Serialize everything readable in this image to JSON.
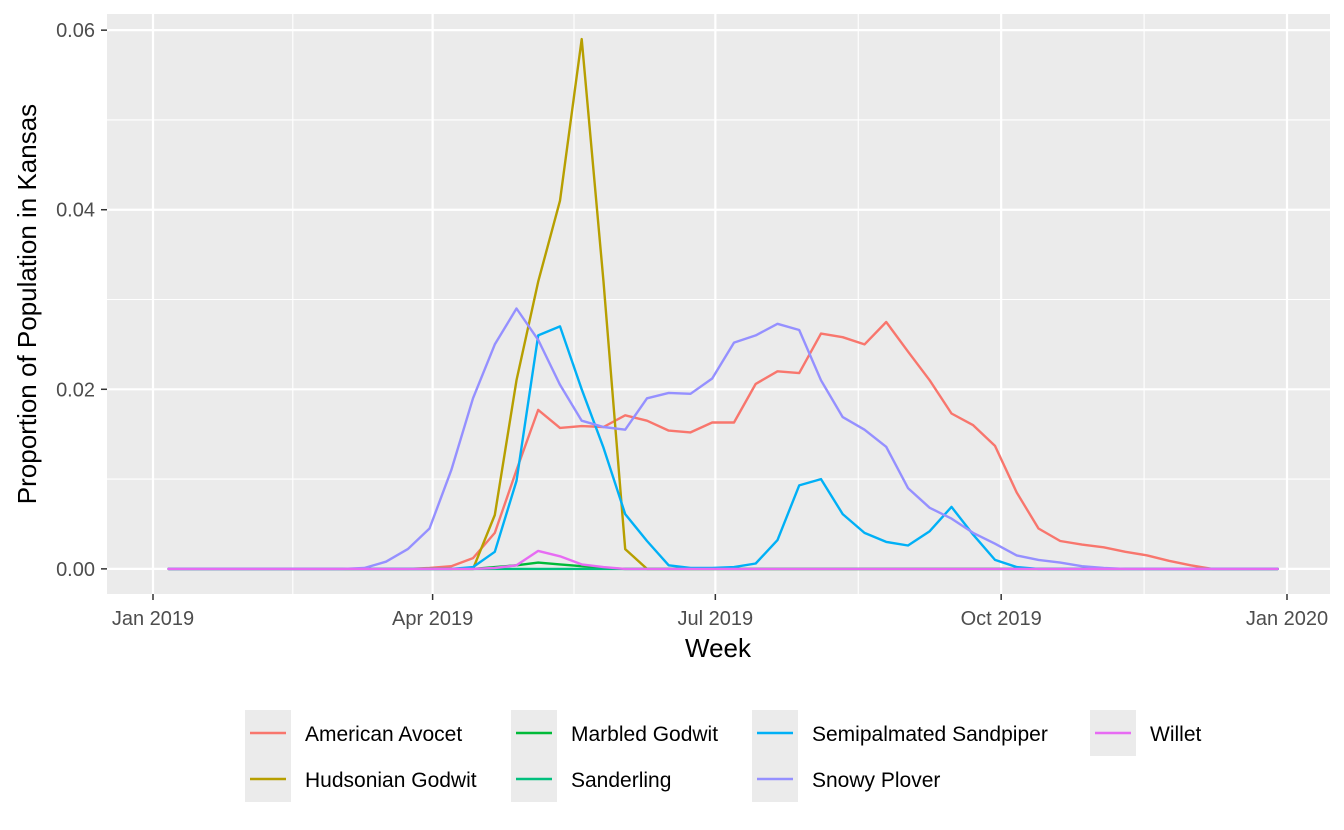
{
  "chart_data": {
    "type": "line",
    "title": "",
    "xlabel": "Week",
    "ylabel": "Proportion of Population in Kansas",
    "x_ticks": [
      {
        "label": "Jan 2019",
        "day": 0
      },
      {
        "label": "Apr 2019",
        "day": 90
      },
      {
        "label": "Jul 2019",
        "day": 181
      },
      {
        "label": "Oct 2019",
        "day": 273
      },
      {
        "label": "Jan 2020",
        "day": 365
      }
    ],
    "y_ticks": [
      {
        "label": "0.00",
        "value": 0
      },
      {
        "label": "0.02",
        "value": 0.02
      },
      {
        "label": "0.04",
        "value": 0.04
      },
      {
        "label": "0.06",
        "value": 0.06
      }
    ],
    "ylim": [
      -0.0028,
      0.0618
    ],
    "grid": true,
    "legend_position": "bottom",
    "series": [
      {
        "name": "American Avocet",
        "color": "#F8766D",
        "values": [
          0,
          0,
          0,
          0,
          0,
          0,
          0,
          0,
          0,
          0,
          0,
          0,
          0.0001,
          0.0003,
          0.0012,
          0.004,
          0.011,
          0.0177,
          0.0157,
          0.0159,
          0.0158,
          0.0171,
          0.0165,
          0.0154,
          0.0152,
          0.0163,
          0.0163,
          0.0206,
          0.022,
          0.0218,
          0.0262,
          0.0258,
          0.025,
          0.0275,
          0.0242,
          0.021,
          0.0173,
          0.016,
          0.0137,
          0.0085,
          0.0045,
          0.0031,
          0.0027,
          0.0024,
          0.0019,
          0.0015,
          0.0009,
          0.0004,
          0,
          0,
          0,
          0
        ]
      },
      {
        "name": "Hudsonian Godwit",
        "color": "#B79F00",
        "values": [
          0,
          0,
          0,
          0,
          0,
          0,
          0,
          0,
          0,
          0,
          0,
          0,
          0,
          0,
          0,
          0.006,
          0.021,
          0.032,
          0.041,
          0.059,
          0.032,
          0.0022,
          0,
          0,
          0,
          0,
          0,
          0,
          0,
          0,
          0,
          0,
          0,
          0,
          0,
          0,
          0,
          0,
          0,
          0,
          0,
          0,
          0,
          0,
          0,
          0,
          0,
          0,
          0,
          0,
          0,
          0
        ]
      },
      {
        "name": "Marbled Godwit",
        "color": "#00BA38",
        "values": [
          0,
          0,
          0,
          0,
          0,
          0,
          0,
          0,
          0,
          0,
          0,
          0,
          0,
          0,
          0,
          0.0002,
          0.0004,
          0.0007,
          0.0005,
          0.0003,
          0.0001,
          0,
          0,
          0,
          0,
          0,
          0,
          0,
          0,
          0,
          0,
          0,
          0,
          0,
          0,
          0,
          0,
          0,
          0,
          0,
          0,
          0,
          0,
          0,
          0,
          0,
          0,
          0,
          0,
          0,
          0,
          0
        ]
      },
      {
        "name": "Sanderling",
        "color": "#00BF7D",
        "values": [
          0,
          0,
          0,
          0,
          0,
          0,
          0,
          0,
          0,
          0,
          0,
          0,
          0,
          0,
          0,
          0,
          0,
          0,
          0,
          0,
          0,
          0,
          0,
          0,
          0,
          0,
          0,
          0,
          0,
          0,
          0,
          0,
          0,
          0,
          0,
          0,
          0,
          0,
          0,
          0,
          0,
          0,
          0,
          0,
          0,
          0,
          0,
          0,
          0,
          0,
          0,
          0
        ]
      },
      {
        "name": "Semipalmated Sandpiper",
        "color": "#00B0F6",
        "values": [
          0,
          0,
          0,
          0,
          0,
          0,
          0,
          0,
          0,
          0,
          0,
          0,
          0,
          0,
          0.0002,
          0.0019,
          0.0098,
          0.026,
          0.027,
          0.02,
          0.0135,
          0.0061,
          0.0031,
          0.0004,
          0.0001,
          0.0001,
          0.0002,
          0.0006,
          0.0032,
          0.0093,
          0.01,
          0.0061,
          0.004,
          0.003,
          0.0026,
          0.0042,
          0.0069,
          0.0038,
          0.001,
          0.0002,
          0,
          0,
          0,
          0,
          0,
          0,
          0,
          0,
          0,
          0,
          0,
          0
        ]
      },
      {
        "name": "Snowy Plover",
        "color": "#9590FF",
        "values": [
          0,
          0,
          0,
          0,
          0,
          0,
          0,
          0,
          0,
          0.0001,
          0.0008,
          0.0022,
          0.0045,
          0.011,
          0.019,
          0.025,
          0.029,
          0.0255,
          0.0205,
          0.0165,
          0.0158,
          0.0155,
          0.019,
          0.0196,
          0.0195,
          0.0212,
          0.0252,
          0.026,
          0.0273,
          0.0266,
          0.021,
          0.0169,
          0.0155,
          0.0136,
          0.009,
          0.0068,
          0.0056,
          0.004,
          0.0028,
          0.0015,
          0.001,
          0.0007,
          0.0003,
          0.0001,
          0,
          0,
          0,
          0,
          0,
          0,
          0,
          0
        ]
      },
      {
        "name": "Willet",
        "color": "#E76BF3",
        "values": [
          0,
          0,
          0,
          0,
          0,
          0,
          0,
          0,
          0,
          0,
          0,
          0,
          0,
          0,
          0,
          0.0001,
          0.0004,
          0.002,
          0.0014,
          0.0005,
          0.0002,
          0,
          0,
          0,
          0,
          0,
          0,
          0,
          0,
          0,
          0,
          0,
          0,
          0,
          0,
          0,
          0,
          0,
          0,
          0,
          0,
          0,
          0,
          0,
          0,
          0,
          0,
          0,
          0,
          0,
          0,
          0
        ]
      }
    ]
  }
}
